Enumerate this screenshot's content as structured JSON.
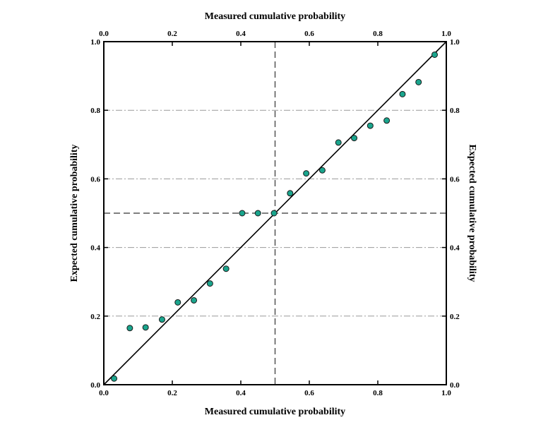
{
  "chart_data": {
    "type": "scatter",
    "title": "",
    "xlabel": "Measured cumulative probability",
    "ylabel": "Expected cumulative probability",
    "xlim": [
      0.0,
      1.0
    ],
    "ylim": [
      0.0,
      1.0
    ],
    "x_ticks": [
      "0.0",
      "0.2",
      "0.4",
      "0.6",
      "0.8",
      "1.0"
    ],
    "y_ticks": [
      "0.0",
      "0.2",
      "0.4",
      "0.6",
      "0.8",
      "1.0"
    ],
    "top_ticks": [
      "0.0",
      "0.2",
      "0.4",
      "0.6",
      "0.8",
      "1.0"
    ],
    "right_ticks": [
      "0.0",
      "0.2",
      "0.4",
      "0.6",
      "0.8",
      "1.0"
    ],
    "grid_y": [
      0.2,
      0.4,
      0.6,
      0.8
    ],
    "reference_line": {
      "from": [
        0,
        0
      ],
      "to": [
        1,
        1
      ]
    },
    "crosshair": {
      "x": 0.5,
      "y": 0.5
    },
    "marker_color": "#1aa58d",
    "points": [
      {
        "x": 0.03,
        "y": 0.018
      },
      {
        "x": 0.076,
        "y": 0.165
      },
      {
        "x": 0.122,
        "y": 0.167
      },
      {
        "x": 0.17,
        "y": 0.19
      },
      {
        "x": 0.216,
        "y": 0.24
      },
      {
        "x": 0.263,
        "y": 0.246
      },
      {
        "x": 0.31,
        "y": 0.295
      },
      {
        "x": 0.357,
        "y": 0.338
      },
      {
        "x": 0.404,
        "y": 0.5
      },
      {
        "x": 0.45,
        "y": 0.5
      },
      {
        "x": 0.497,
        "y": 0.5
      },
      {
        "x": 0.544,
        "y": 0.558
      },
      {
        "x": 0.591,
        "y": 0.616
      },
      {
        "x": 0.638,
        "y": 0.625
      },
      {
        "x": 0.685,
        "y": 0.706
      },
      {
        "x": 0.731,
        "y": 0.719
      },
      {
        "x": 0.778,
        "y": 0.755
      },
      {
        "x": 0.826,
        "y": 0.77
      },
      {
        "x": 0.872,
        "y": 0.847
      },
      {
        "x": 0.919,
        "y": 0.882
      },
      {
        "x": 0.966,
        "y": 0.962
      }
    ]
  },
  "labels": {
    "bottom_title": "Measured cumulative probability",
    "top_title": "Measured cumulative probability",
    "left_title": "Expected cumulative probability",
    "right_title": "Expected cumulative probability"
  }
}
